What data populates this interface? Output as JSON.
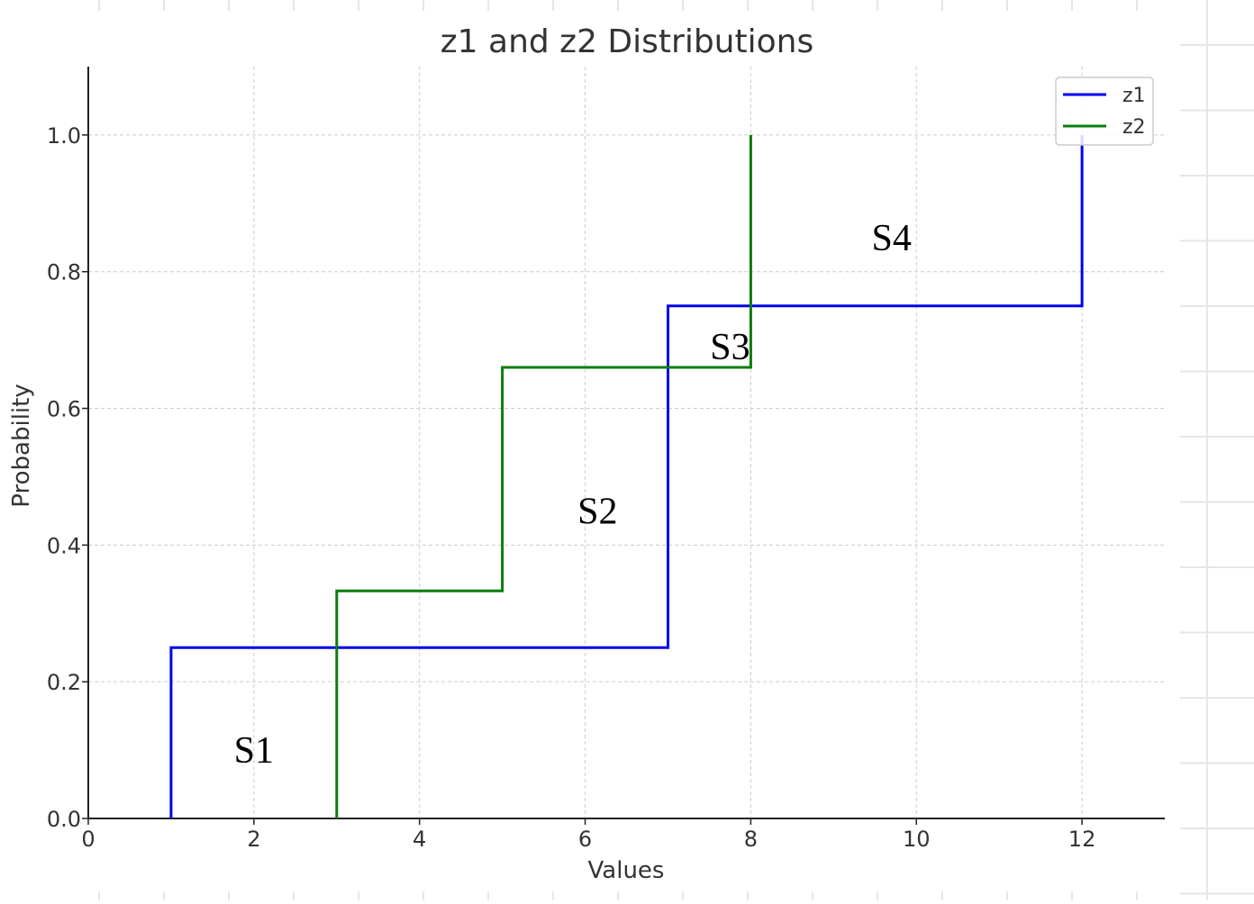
{
  "chart_data": {
    "type": "line",
    "title": "z1 and z2 Distributions",
    "xlabel": "Values",
    "ylabel": "Probability",
    "xlim": [
      0,
      13
    ],
    "ylim": [
      0,
      1.1
    ],
    "x_ticks": [
      0,
      2,
      4,
      6,
      8,
      10,
      12
    ],
    "y_ticks": [
      0.0,
      0.2,
      0.4,
      0.6,
      0.8,
      1.0
    ],
    "x_tick_labels": [
      "0",
      "2",
      "4",
      "6",
      "8",
      "10",
      "12"
    ],
    "y_tick_labels": [
      "0.0",
      "0.2",
      "0.4",
      "0.6",
      "0.8",
      "1.0"
    ],
    "grid": true,
    "legend_position": "top-right",
    "series": [
      {
        "name": "z1",
        "color": "#0000ee",
        "step": true,
        "points": [
          [
            1,
            0
          ],
          [
            1,
            0.25
          ],
          [
            7,
            0.25
          ],
          [
            7,
            0.75
          ],
          [
            12,
            0.75
          ],
          [
            12,
            1.0
          ]
        ]
      },
      {
        "name": "z2",
        "color": "#0a7d0a",
        "step": true,
        "points": [
          [
            3,
            0
          ],
          [
            3,
            0.333
          ],
          [
            5,
            0.333
          ],
          [
            5,
            0.66
          ],
          [
            8,
            0.66
          ],
          [
            8,
            1.0
          ]
        ]
      }
    ],
    "annotations": [
      {
        "text": "S1",
        "x": 2.0,
        "y": 0.1
      },
      {
        "text": "S2",
        "x": 6.15,
        "y": 0.45
      },
      {
        "text": "S3",
        "x": 7.75,
        "y": 0.69
      },
      {
        "text": "S4",
        "x": 9.7,
        "y": 0.85
      }
    ]
  }
}
